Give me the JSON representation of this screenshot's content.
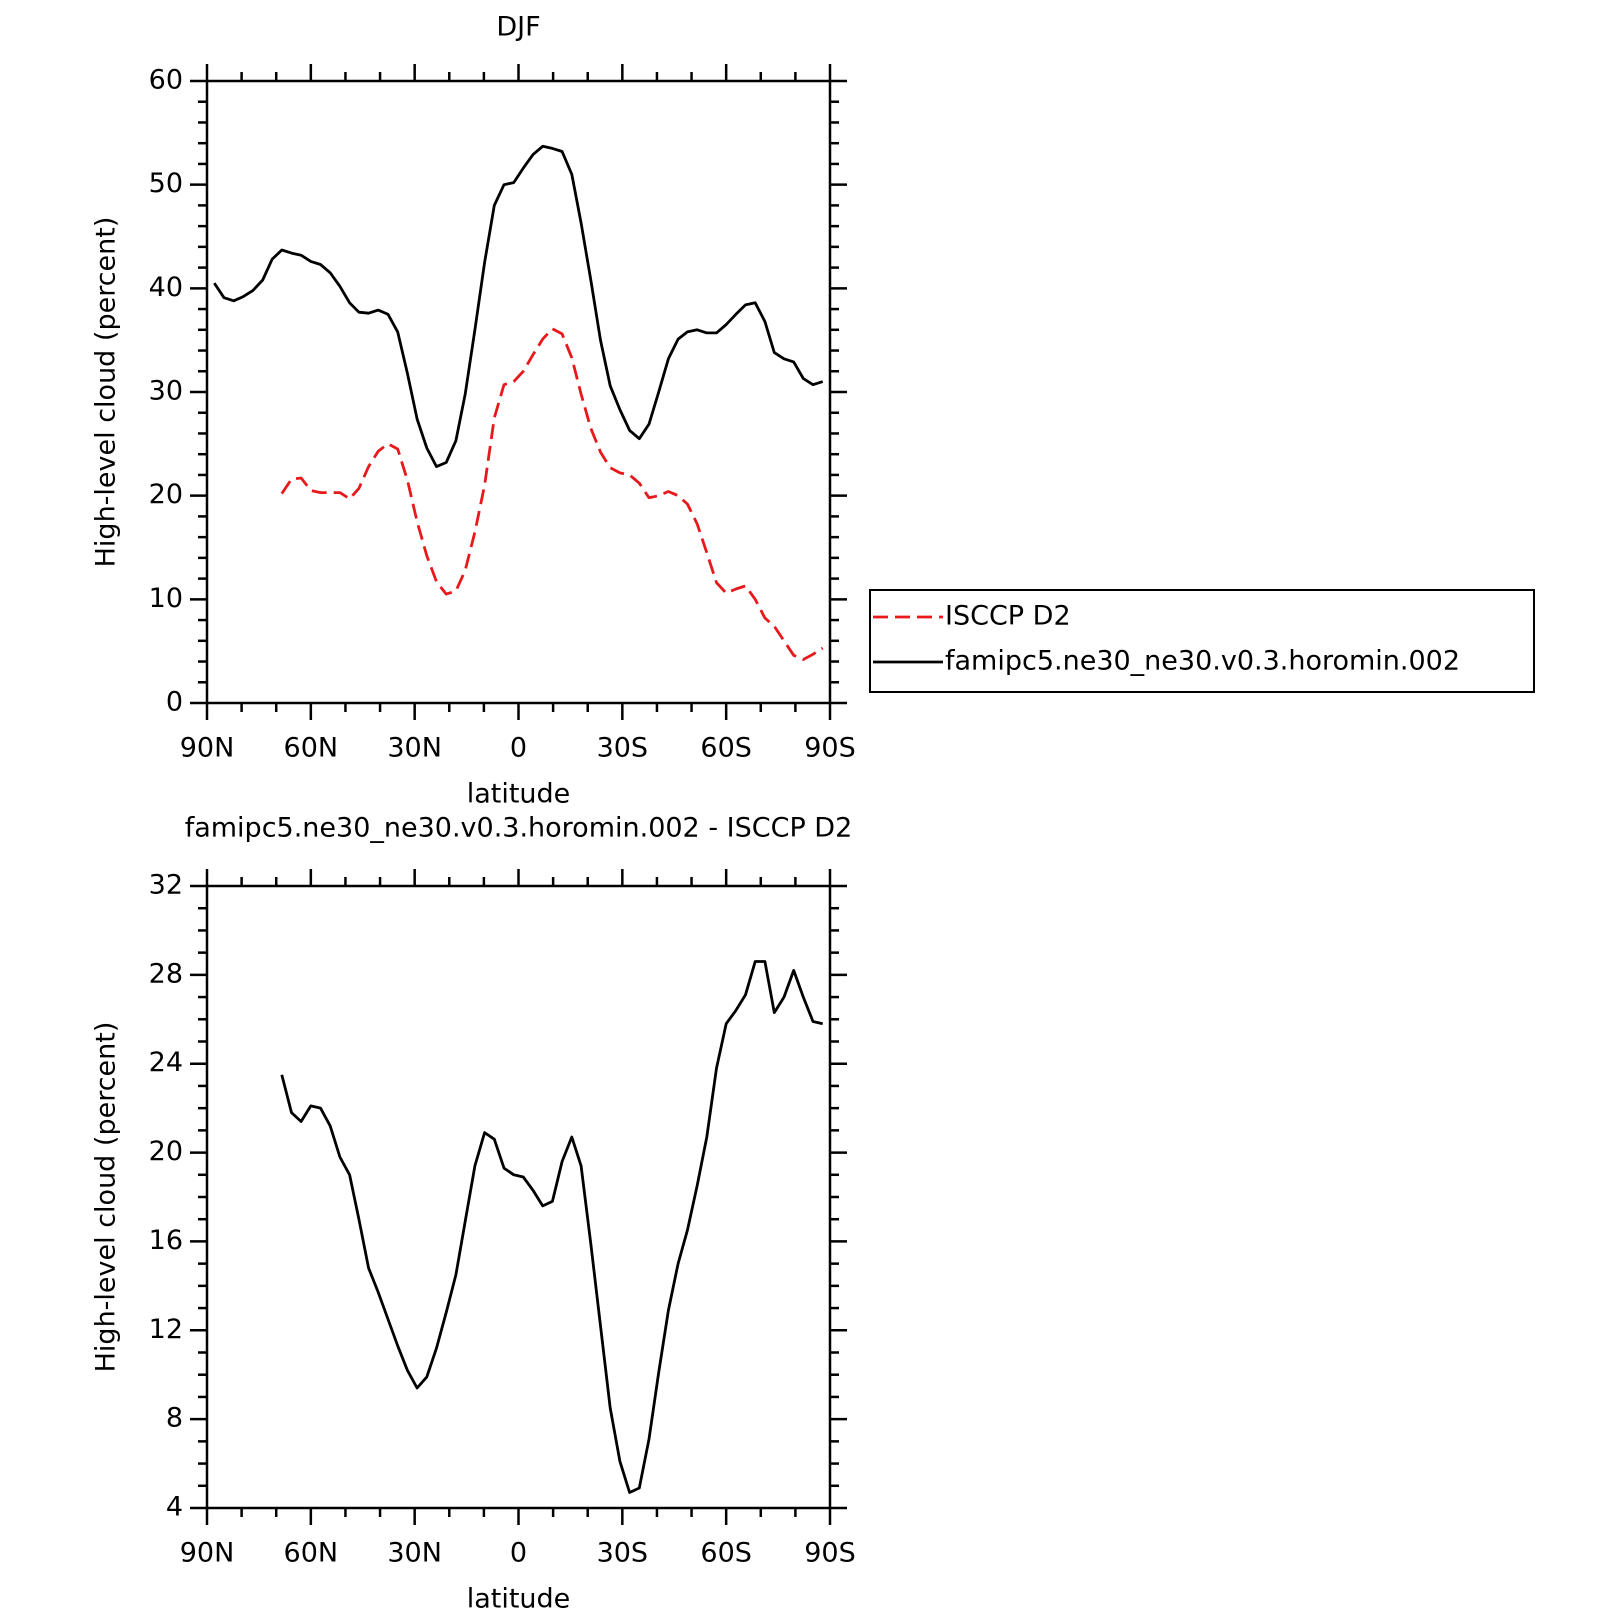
{
  "chart_data": [
    {
      "type": "line",
      "title": "DJF",
      "xlabel": "latitude",
      "ylabel": "High-level cloud (percent)",
      "xlim": [
        90,
        -90
      ],
      "xticks": [
        {
          "value": 90,
          "label": "90N"
        },
        {
          "value": 60,
          "label": "60N"
        },
        {
          "value": 30,
          "label": "30N"
        },
        0,
        {
          "value": -30,
          "label": "30S"
        },
        {
          "value": -60,
          "label": "60S"
        },
        {
          "value": -90,
          "label": "90S"
        }
      ],
      "ylim": [
        0,
        60
      ],
      "yticks": [
        0,
        10,
        20,
        30,
        40,
        50,
        60
      ],
      "x": [
        87.9,
        85.1,
        82.3,
        79.5,
        76.7,
        73.9,
        71.2,
        68.4,
        65.6,
        62.8,
        60.0,
        57.2,
        54.4,
        51.6,
        48.8,
        46.1,
        43.3,
        40.5,
        37.7,
        34.9,
        32.1,
        29.3,
        26.5,
        23.7,
        20.9,
        18.1,
        15.4,
        12.6,
        9.8,
        7.0,
        4.2,
        1.4,
        -1.4,
        -4.2,
        -7.0,
        -9.8,
        -12.6,
        -15.4,
        -18.1,
        -20.9,
        -23.7,
        -26.5,
        -29.3,
        -32.1,
        -34.9,
        -37.7,
        -40.5,
        -43.3,
        -46.1,
        -48.8,
        -51.6,
        -54.4,
        -57.2,
        -60.0,
        -62.8,
        -65.6,
        -68.4,
        -71.2,
        -73.9,
        -76.7,
        -79.5,
        -82.3,
        -85.1,
        -87.9
      ],
      "legend": "right",
      "series": [
        {
          "name": "ISCCP D2",
          "color": "#e8191b",
          "dashed": true,
          "values": [
            null,
            null,
            null,
            null,
            null,
            null,
            null,
            20.2,
            21.6,
            21.7,
            20.5,
            20.3,
            20.3,
            20.3,
            19.7,
            20.7,
            22.8,
            24.3,
            25.0,
            24.5,
            21.5,
            17.5,
            14.2,
            11.7,
            10.5,
            10.8,
            12.8,
            16.5,
            21.0,
            27.5,
            30.7,
            31.0,
            32.0,
            33.6,
            35.1,
            36.1,
            35.6,
            33.3,
            29.8,
            26.5,
            24.2,
            22.7,
            22.2,
            22.0,
            21.2,
            19.8,
            20.0,
            20.4,
            20.0,
            19.2,
            17.3,
            14.5,
            11.6,
            10.6,
            11.0,
            11.3,
            10.0,
            8.2,
            7.4,
            6.0,
            4.6,
            4.2,
            4.7,
            5.3
          ]
        },
        {
          "name": "famipc5.ne30_ne30.v0.3.horomin.002",
          "color": "#000000",
          "dashed": false,
          "values": [
            40.5,
            39.1,
            38.8,
            39.2,
            39.8,
            40.8,
            42.8,
            43.7,
            43.4,
            43.2,
            42.6,
            42.3,
            41.5,
            40.2,
            38.6,
            37.7,
            37.6,
            37.9,
            37.5,
            35.8,
            31.8,
            27.4,
            24.6,
            22.8,
            23.2,
            25.3,
            29.8,
            36.0,
            42.5,
            48.0,
            50.0,
            50.2,
            51.6,
            52.9,
            53.7,
            53.5,
            53.2,
            51.0,
            46.3,
            40.8,
            35.0,
            30.6,
            28.3,
            26.3,
            25.5,
            26.9,
            30.0,
            33.2,
            35.1,
            35.8,
            36.0,
            35.7,
            35.7,
            36.5,
            37.5,
            38.4,
            38.6,
            36.8,
            33.8,
            33.2,
            32.9,
            31.3,
            30.7,
            31.0
          ]
        }
      ]
    },
    {
      "type": "line",
      "title": "famipc5.ne30_ne30.v0.3.horomin.002 - ISCCP D2",
      "xlabel": "latitude",
      "ylabel": "High-level cloud (percent)",
      "xlim": [
        90,
        -90
      ],
      "xticks": [
        {
          "value": 90,
          "label": "90N"
        },
        {
          "value": 60,
          "label": "60N"
        },
        {
          "value": 30,
          "label": "30N"
        },
        0,
        {
          "value": -30,
          "label": "30S"
        },
        {
          "value": -60,
          "label": "60S"
        },
        {
          "value": -90,
          "label": "90S"
        }
      ],
      "ylim": [
        4,
        32
      ],
      "yticks": [
        4,
        8,
        12,
        16,
        20,
        24,
        28,
        32
      ],
      "x": [
        87.9,
        85.1,
        82.3,
        79.5,
        76.7,
        73.9,
        71.2,
        68.4,
        65.6,
        62.8,
        60.0,
        57.2,
        54.4,
        51.6,
        48.8,
        46.1,
        43.3,
        40.5,
        37.7,
        34.9,
        32.1,
        29.3,
        26.5,
        23.7,
        20.9,
        18.1,
        15.4,
        12.6,
        9.8,
        7.0,
        4.2,
        1.4,
        -1.4,
        -4.2,
        -7.0,
        -9.8,
        -12.6,
        -15.4,
        -18.1,
        -20.9,
        -23.7,
        -26.5,
        -29.3,
        -32.1,
        -34.9,
        -37.7,
        -40.5,
        -43.3,
        -46.1,
        -48.8,
        -51.6,
        -54.4,
        -57.2,
        -60.0,
        -62.8,
        -65.6,
        -68.4,
        -71.2,
        -73.9,
        -76.7,
        -79.5,
        -82.3,
        -85.1,
        -87.9
      ],
      "series": [
        {
          "color": "#000000",
          "dashed": false,
          "values": [
            null,
            null,
            null,
            null,
            null,
            null,
            null,
            23.5,
            21.8,
            21.4,
            22.1,
            22.0,
            21.2,
            19.8,
            19.0,
            17.0,
            14.8,
            13.7,
            12.5,
            11.3,
            10.2,
            9.4,
            9.9,
            11.2,
            12.8,
            14.5,
            16.9,
            19.4,
            20.9,
            20.6,
            19.3,
            19.0,
            18.9,
            18.3,
            17.6,
            17.8,
            19.6,
            20.7,
            19.4,
            15.9,
            12.2,
            8.5,
            6.1,
            4.7,
            4.9,
            7.1,
            10.1,
            12.9,
            15.0,
            16.5,
            18.5,
            20.7,
            23.8,
            25.8,
            26.4,
            27.1,
            28.6,
            28.6,
            26.3,
            27.0,
            28.2,
            27.0,
            25.9,
            25.8
          ]
        }
      ]
    }
  ]
}
